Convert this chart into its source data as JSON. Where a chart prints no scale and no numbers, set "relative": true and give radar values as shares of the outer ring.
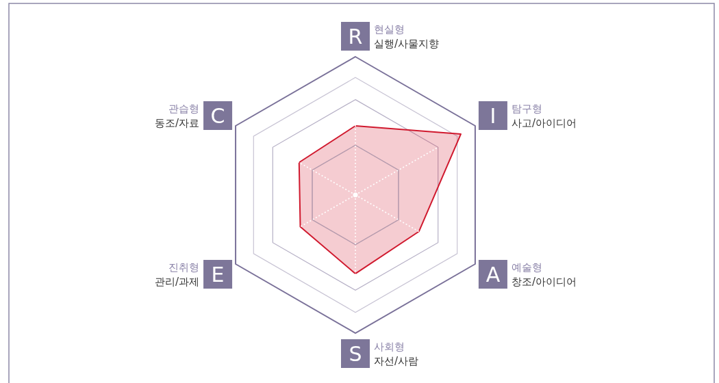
{
  "chart_data": {
    "type": "radar",
    "relative": true,
    "grid": true,
    "categories": [
      "R",
      "I",
      "A",
      "S",
      "E",
      "C"
    ],
    "annotations": [
      "현실형",
      "실행/사물지향",
      "탐구형",
      "사고/아이디어",
      "예술형",
      "창조/아이디어",
      "사회형",
      "자선/사람",
      "진취형",
      "관리/과제",
      "관습형",
      "동조/자료"
    ],
    "series": [
      {
        "color": "#d0192e",
        "values": [
          0.5,
          0.88,
          0.53,
          0.57,
          0.46,
          0.47
        ]
      }
    ]
  }
}
